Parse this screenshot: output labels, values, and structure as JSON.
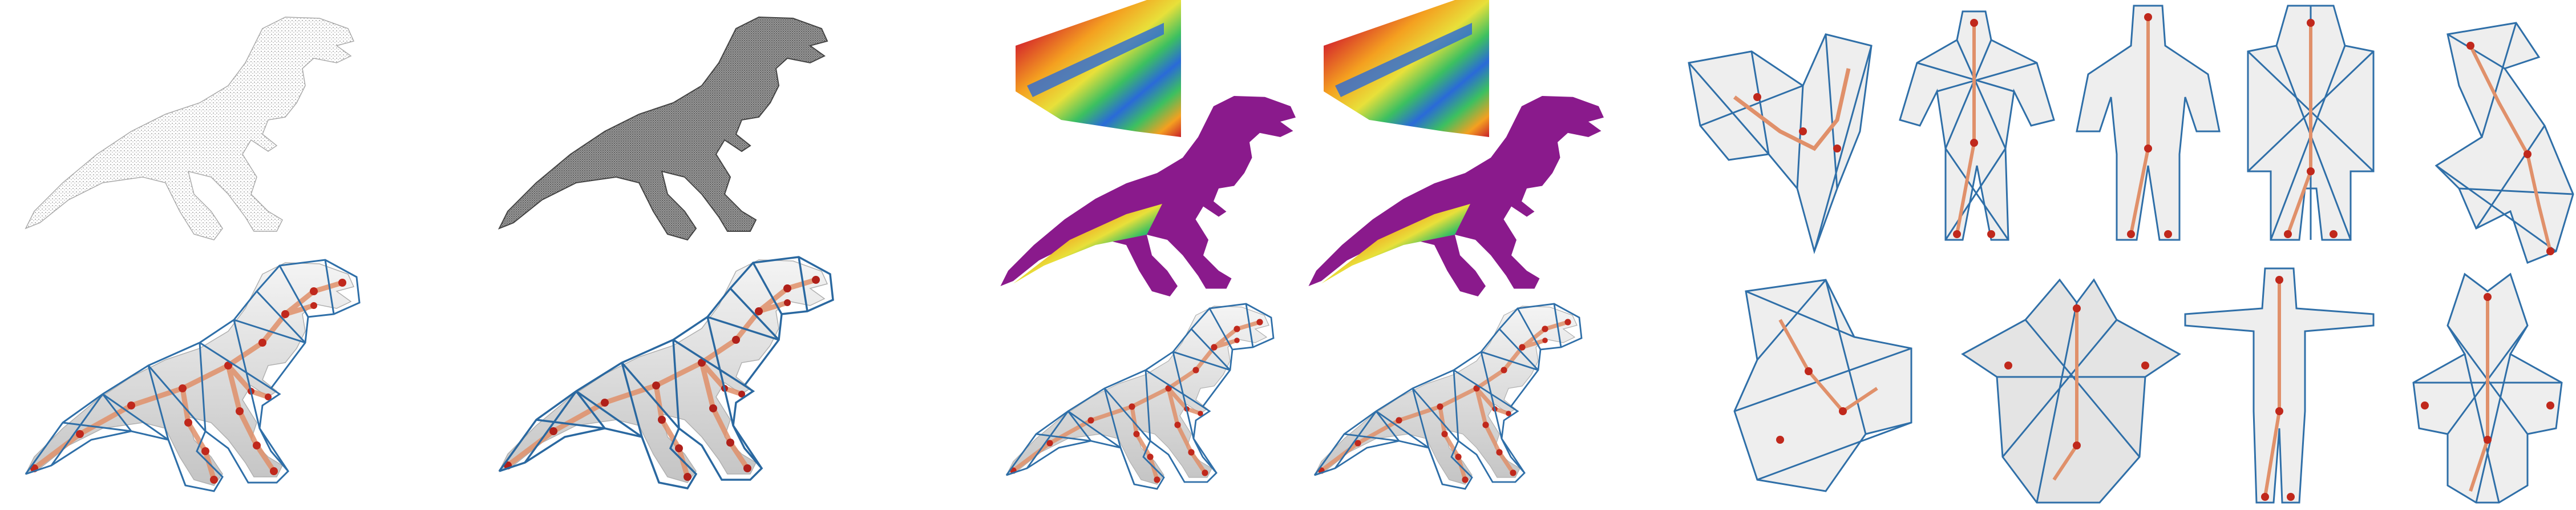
{
  "figure": {
    "background": "#ffffff",
    "colors": {
      "cage_edge": "#2f6fa8",
      "cage_edge_dark": "#1d4f80",
      "skeleton_bone": "#e0906a",
      "skeleton_joint": "#c0281c",
      "mesh_fill": "#e8e8e8",
      "mesh_shade": "#b8b8b8",
      "pointcloud": "#8a8a8a",
      "dense_scan": "#555555",
      "colormap_body": "#8a1a8c",
      "colormap_hot": "#f2d83a",
      "colormap_mid": "#e0402a",
      "colormap_cool": "#2fc070",
      "colormap_cold": "#2a6ad8"
    },
    "panels": [
      {
        "name": "sparse-pointcloud-trex",
        "icon": "trex-pointcloud"
      },
      {
        "name": "dense-pointcloud-trex",
        "icon": "trex-dense-scan"
      },
      {
        "name": "cage-skeleton-trex-sparse",
        "icon": "trex-cage-skeleton"
      },
      {
        "name": "cage-skeleton-trex-dense",
        "icon": "trex-cage-skeleton"
      },
      {
        "name": "colormap-trex-a",
        "icon": "trex-distance-field"
      },
      {
        "name": "colormap-trex-b",
        "icon": "trex-distance-field"
      },
      {
        "name": "gallery-cages",
        "icon": "cage-gallery"
      }
    ]
  }
}
